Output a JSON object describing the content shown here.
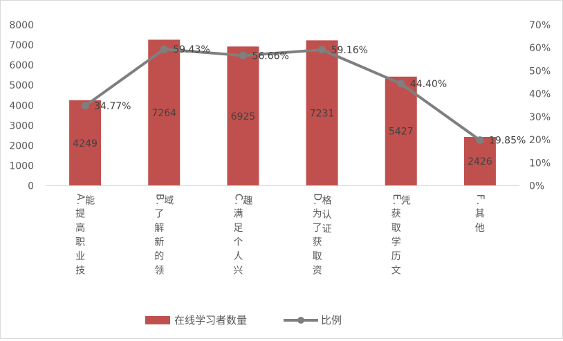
{
  "chart_data": {
    "type": "bar",
    "categories": [
      "A.提高职业技能",
      "B.了解新的领域",
      "C.满足个人兴趣",
      "D.为了获取资格认证",
      "E.获取学历文凭",
      "F.其他"
    ],
    "series": [
      {
        "name": "在线学习者数量",
        "type": "bar",
        "axis": "left",
        "color": "#C0504D",
        "values": [
          4249,
          7264,
          6925,
          7231,
          5427,
          2426
        ],
        "labels": [
          "4249",
          "7264",
          "6925",
          "7231",
          "5427",
          "2426"
        ]
      },
      {
        "name": "比例",
        "type": "line",
        "axis": "right",
        "color": "#7F7F7F",
        "values": [
          34.77,
          59.43,
          56.66,
          59.16,
          44.4,
          19.85
        ],
        "labels": [
          "34.77%",
          "59.43%",
          "56.66%",
          "59.16%",
          "44.40%",
          "19.85%"
        ]
      }
    ],
    "y_left": {
      "lim": [
        0,
        8000
      ],
      "ticks": [
        0,
        1000,
        2000,
        3000,
        4000,
        5000,
        6000,
        7000,
        8000
      ],
      "tick_labels": [
        "0",
        "1000",
        "2000",
        "3000",
        "4000",
        "5000",
        "6000",
        "7000",
        "8000"
      ]
    },
    "y_right": {
      "lim": [
        0,
        70
      ],
      "ticks": [
        0,
        10,
        20,
        30,
        40,
        50,
        60,
        70
      ],
      "tick_labels": [
        "0%",
        "10%",
        "20%",
        "30%",
        "40%",
        "50%",
        "60%",
        "70%"
      ]
    },
    "grid": false,
    "legend_position": "bottom"
  }
}
